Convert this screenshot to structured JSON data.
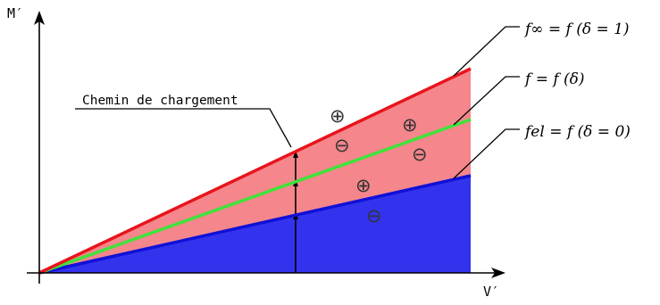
{
  "axes": {
    "y_label": "M′",
    "x_label": "V′"
  },
  "labels": {
    "path": "Chemin de chargement",
    "f_inf": "f∞ = f (δ = 1)",
    "f": "f = f (δ)",
    "f_el": "fel = f (δ = 0)"
  },
  "signs": {
    "plus": "⊕",
    "minus": "⊖"
  },
  "colors": {
    "red_line": "#e8141c",
    "red_fill": "#f4868c",
    "green_line": "#3fe33a",
    "blue_line": "#1010d8",
    "blue_fill": "#3333ee",
    "axis": "#000000"
  }
}
